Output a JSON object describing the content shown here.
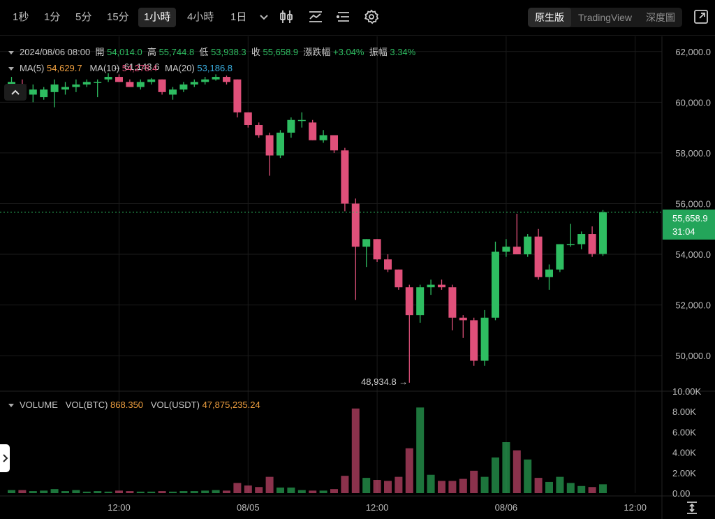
{
  "toolbar": {
    "timeframes": [
      "1秒",
      "1分",
      "5分",
      "15分",
      "1小時",
      "4小時",
      "1日"
    ],
    "active_timeframe": "1小時",
    "views": [
      "原生版",
      "TradingView",
      "深度圖"
    ],
    "active_view": "原生版"
  },
  "ohlc": {
    "date": "2024/08/06 08:00",
    "open_label": "開",
    "open": "54,014.0",
    "high_label": "高",
    "high": "55,744.8",
    "low_label": "低",
    "low": "53,938.3",
    "close_label": "收",
    "close": "55,658.9",
    "change_label": "漲跌幅",
    "change": "+3.04%",
    "amplitude_label": "振幅",
    "amplitude": "3.34%"
  },
  "ma": {
    "ma5_label": "MA(5)",
    "ma5": "54,629.7",
    "ma10_label": "MA(10)",
    "ma10": "54,278.4",
    "ma20_label": "MA(20)",
    "ma20": "53,186.8"
  },
  "volume_info": {
    "title": "VOLUME",
    "btc_label": "VOL(BTC)",
    "btc": "868.350",
    "usdt_label": "VOL(USDT)",
    "usdt": "47,875,235.24"
  },
  "current_price": {
    "price": "55,658.9",
    "countdown": "31:04"
  },
  "colors": {
    "up": "#2ebd61",
    "down": "#e0507a",
    "grid": "#1b1b1b",
    "price_line": "#2ebd61"
  },
  "chart_data": {
    "type": "candlestick",
    "price_axis": {
      "min": 48600,
      "max": 62600,
      "ticks": [
        50000,
        52000,
        54000,
        56000,
        58000,
        60000,
        62000
      ],
      "tick_labels": [
        "50,000.0",
        "52,000.0",
        "54,000.0",
        "56,000.0",
        "58,000.0",
        "60,000.0",
        "62,000.0"
      ]
    },
    "volume_axis": {
      "min": 0,
      "max": 10000,
      "ticks": [
        0,
        2000,
        4000,
        6000,
        8000,
        10000
      ],
      "tick_labels": [
        "0.00",
        "2.00K",
        "4.00K",
        "6.00K",
        "8.00K",
        "10.00K"
      ]
    },
    "time_labels": [
      {
        "label": "12:00",
        "index": 10
      },
      {
        "label": "08/05",
        "index": 22
      },
      {
        "label": "12:00",
        "index": 34
      },
      {
        "label": "08/06",
        "index": 46
      },
      {
        "label": "12:00",
        "index": 58
      }
    ],
    "annotations": [
      {
        "text": "← 61,143.6",
        "index": 9,
        "value": 61143.6,
        "position": "high"
      },
      {
        "text": "48,934.8 →",
        "index": 37,
        "value": 48934.8,
        "position": "low"
      }
    ],
    "candles": [
      {
        "o": 60700,
        "h": 61000,
        "l": 60300,
        "c": 60800,
        "v": 300
      },
      {
        "o": 60700,
        "h": 60900,
        "l": 60200,
        "c": 60300,
        "v": 300
      },
      {
        "o": 60300,
        "h": 60700,
        "l": 60000,
        "c": 60500,
        "v": 200
      },
      {
        "o": 60200,
        "h": 60600,
        "l": 60100,
        "c": 60500,
        "v": 250
      },
      {
        "o": 60400,
        "h": 60900,
        "l": 59800,
        "c": 60700,
        "v": 400
      },
      {
        "o": 60500,
        "h": 60800,
        "l": 60300,
        "c": 60600,
        "v": 200
      },
      {
        "o": 60600,
        "h": 60900,
        "l": 60400,
        "c": 60700,
        "v": 300
      },
      {
        "o": 60700,
        "h": 60900,
        "l": 60600,
        "c": 60800,
        "v": 150
      },
      {
        "o": 60800,
        "h": 60900,
        "l": 60200,
        "c": 60800,
        "v": 200
      },
      {
        "o": 60900,
        "h": 61143.6,
        "l": 60800,
        "c": 61000,
        "v": 150
      },
      {
        "o": 61000,
        "h": 61100,
        "l": 60800,
        "c": 60800,
        "v": 250
      },
      {
        "o": 60800,
        "h": 60900,
        "l": 60600,
        "c": 60600,
        "v": 200
      },
      {
        "o": 60600,
        "h": 60900,
        "l": 60500,
        "c": 60800,
        "v": 150
      },
      {
        "o": 60800,
        "h": 60950,
        "l": 60700,
        "c": 60900,
        "v": 150
      },
      {
        "o": 60900,
        "h": 60900,
        "l": 60300,
        "c": 60400,
        "v": 200
      },
      {
        "o": 60300,
        "h": 60600,
        "l": 60100,
        "c": 60500,
        "v": 150
      },
      {
        "o": 60500,
        "h": 60800,
        "l": 60400,
        "c": 60700,
        "v": 200
      },
      {
        "o": 60700,
        "h": 60900,
        "l": 60600,
        "c": 60800,
        "v": 200
      },
      {
        "o": 60800,
        "h": 61000,
        "l": 60700,
        "c": 60900,
        "v": 250
      },
      {
        "o": 60900,
        "h": 61100,
        "l": 60850,
        "c": 61000,
        "v": 300
      },
      {
        "o": 61000,
        "h": 61050,
        "l": 60700,
        "c": 60800,
        "v": 250
      },
      {
        "o": 60900,
        "h": 60900,
        "l": 59400,
        "c": 59600,
        "v": 1000
      },
      {
        "o": 59600,
        "h": 59600,
        "l": 59000,
        "c": 59100,
        "v": 750
      },
      {
        "o": 59100,
        "h": 59200,
        "l": 58600,
        "c": 58700,
        "v": 600
      },
      {
        "o": 58700,
        "h": 58800,
        "l": 57100,
        "c": 57900,
        "v": 1600
      },
      {
        "o": 57900,
        "h": 58900,
        "l": 57800,
        "c": 58800,
        "v": 550
      },
      {
        "o": 58800,
        "h": 59400,
        "l": 58600,
        "c": 59300,
        "v": 550
      },
      {
        "o": 59300,
        "h": 59600,
        "l": 59000,
        "c": 59300,
        "v": 300
      },
      {
        "o": 59200,
        "h": 59300,
        "l": 58500,
        "c": 58500,
        "v": 250
      },
      {
        "o": 58500,
        "h": 58900,
        "l": 58400,
        "c": 58700,
        "v": 250
      },
      {
        "o": 58700,
        "h": 58700,
        "l": 58000,
        "c": 58100,
        "v": 400
      },
      {
        "o": 58100,
        "h": 58200,
        "l": 55700,
        "c": 56000,
        "v": 1700
      },
      {
        "o": 56000,
        "h": 56200,
        "l": 52200,
        "c": 54300,
        "v": 8300
      },
      {
        "o": 54300,
        "h": 54600,
        "l": 53500,
        "c": 54600,
        "v": 1500
      },
      {
        "o": 54600,
        "h": 54600,
        "l": 53700,
        "c": 53800,
        "v": 1300
      },
      {
        "o": 53800,
        "h": 54000,
        "l": 53300,
        "c": 53400,
        "v": 1200
      },
      {
        "o": 53400,
        "h": 53400,
        "l": 52600,
        "c": 52700,
        "v": 1600
      },
      {
        "o": 52700,
        "h": 52800,
        "l": 48934.8,
        "c": 51600,
        "v": 4400
      },
      {
        "o": 51600,
        "h": 52800,
        "l": 51300,
        "c": 52700,
        "v": 8400
      },
      {
        "o": 52700,
        "h": 53000,
        "l": 52400,
        "c": 52800,
        "v": 1800
      },
      {
        "o": 52800,
        "h": 53000,
        "l": 52600,
        "c": 52700,
        "v": 1200
      },
      {
        "o": 52700,
        "h": 52800,
        "l": 51000,
        "c": 51500,
        "v": 1200
      },
      {
        "o": 51500,
        "h": 51600,
        "l": 50700,
        "c": 51400,
        "v": 1400
      },
      {
        "o": 51400,
        "h": 51500,
        "l": 49600,
        "c": 49800,
        "v": 2200
      },
      {
        "o": 49800,
        "h": 51800,
        "l": 49600,
        "c": 51500,
        "v": 1600
      },
      {
        "o": 51500,
        "h": 54500,
        "l": 51400,
        "c": 54100,
        "v": 3500
      },
      {
        "o": 54100,
        "h": 54600,
        "l": 53900,
        "c": 54300,
        "v": 5000
      },
      {
        "o": 54300,
        "h": 55600,
        "l": 54000,
        "c": 54000,
        "v": 4200
      },
      {
        "o": 54000,
        "h": 54800,
        "l": 53900,
        "c": 54700,
        "v": 3300
      },
      {
        "o": 54700,
        "h": 55000,
        "l": 53000,
        "c": 53100,
        "v": 1500
      },
      {
        "o": 53100,
        "h": 53600,
        "l": 52600,
        "c": 53400,
        "v": 1100
      },
      {
        "o": 53400,
        "h": 54400,
        "l": 53300,
        "c": 54400,
        "v": 1600
      },
      {
        "o": 54400,
        "h": 55200,
        "l": 54300,
        "c": 54400,
        "v": 1000
      },
      {
        "o": 54400,
        "h": 54900,
        "l": 54200,
        "c": 54800,
        "v": 700
      },
      {
        "o": 54800,
        "h": 55100,
        "l": 53900,
        "c": 54014,
        "v": 600
      },
      {
        "o": 54014,
        "h": 55744.8,
        "l": 53938.3,
        "c": 55658.9,
        "v": 868.35
      }
    ]
  }
}
